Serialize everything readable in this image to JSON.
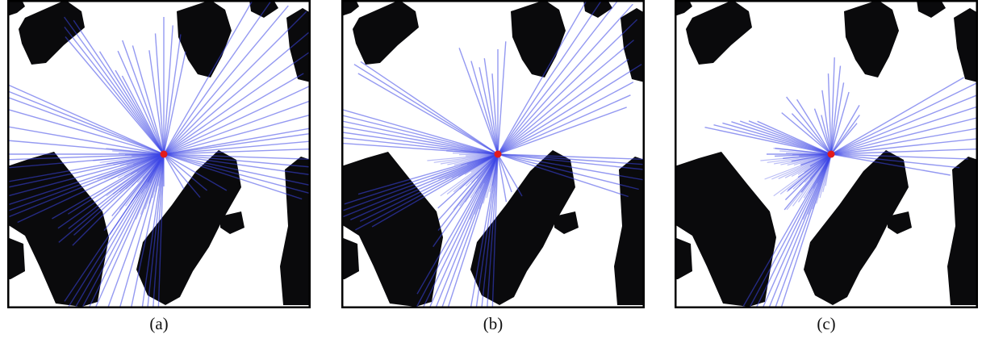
{
  "figure": {
    "panels": [
      {
        "caption": "(a)"
      },
      {
        "caption": "(b)"
      },
      {
        "caption": "(c)"
      }
    ],
    "colors": {
      "background": "#ffffff",
      "obstacle": "#0a0a0c",
      "ray": "#3c46e6",
      "robot": "#e21b1b",
      "border": "#000000"
    }
  }
}
